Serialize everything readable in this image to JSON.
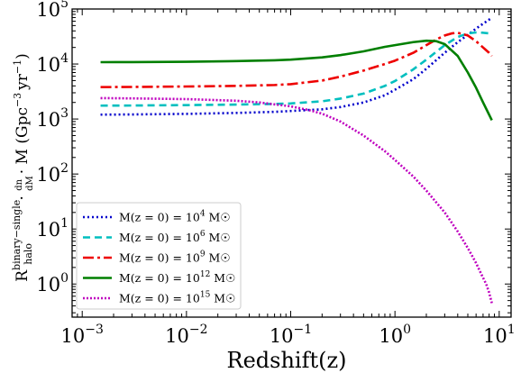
{
  "chart_data": {
    "type": "line",
    "title": "",
    "xlabel": "Redshift(z)",
    "ylabel": "R_halo^binary−single · dn/dM · M (Gpc^−3 yr^−1)",
    "ylabel_parts": {
      "base": "R",
      "sub": "halo",
      "sup": "binary−single",
      "dn": "dn",
      "dM": "dM",
      "rest": "· M (Gpc",
      "exp": "−3",
      "tail": "yr",
      "exp2": "−1",
      "close": ")"
    },
    "xscale": "log",
    "yscale": "log",
    "xlim": [
      0.0008,
      13
    ],
    "ylim": [
      0.25,
      100000
    ],
    "x_ticks": [
      {
        "value": 0.001,
        "base": "10",
        "exp": "−3"
      },
      {
        "value": 0.01,
        "base": "10",
        "exp": "−2"
      },
      {
        "value": 0.1,
        "base": "10",
        "exp": "−1"
      },
      {
        "value": 1,
        "base": "10",
        "exp": "0"
      },
      {
        "value": 10,
        "base": "10",
        "exp": "1"
      }
    ],
    "y_ticks": [
      {
        "value": 1,
        "base": "10",
        "exp": "0"
      },
      {
        "value": 10,
        "base": "10",
        "exp": "1"
      },
      {
        "value": 100,
        "base": "10",
        "exp": "2"
      },
      {
        "value": 1000,
        "base": "10",
        "exp": "3"
      },
      {
        "value": 10000,
        "base": "10",
        "exp": "4"
      },
      {
        "value": 100000,
        "base": "10",
        "exp": "5"
      }
    ],
    "grid": false,
    "legend_position": "lower-left",
    "series": [
      {
        "name": "M(z = 0) = 10^4 M☉",
        "legend": {
          "pre": "M(z = 0) = 10",
          "exp": "4",
          "post": " M☉"
        },
        "color": "#0000cc",
        "dash": "2,3",
        "x": [
          0.0015,
          0.003,
          0.01,
          0.03,
          0.07,
          0.1,
          0.2,
          0.3,
          0.5,
          0.8,
          1,
          1.5,
          2,
          3,
          4,
          5,
          6,
          7,
          8,
          8.5
        ],
        "y": [
          1200,
          1210,
          1240,
          1290,
          1350,
          1400,
          1500,
          1650,
          2000,
          2700,
          3400,
          5300,
          8200,
          16000,
          25000,
          34000,
          44000,
          54000,
          64000,
          69000
        ]
      },
      {
        "name": "M(z = 0) = 10^6 M☉",
        "legend": {
          "pre": "M(z = 0) = 10",
          "exp": "6",
          "post": " M☉"
        },
        "color": "#00bfbf",
        "dash": "8,5",
        "x": [
          0.0015,
          0.003,
          0.01,
          0.03,
          0.07,
          0.1,
          0.2,
          0.3,
          0.5,
          0.8,
          1,
          1.5,
          2,
          3,
          4,
          5,
          6,
          7,
          8,
          8.5
        ],
        "y": [
          1750,
          1760,
          1790,
          1830,
          1880,
          1920,
          2100,
          2350,
          2900,
          4000,
          4900,
          8000,
          12000,
          22000,
          31000,
          36000,
          37500,
          37000,
          36000,
          35500
        ]
      },
      {
        "name": "M(z = 0) = 10^9 M☉",
        "legend": {
          "pre": "M(z = 0) = 10",
          "exp": "9",
          "post": " M☉"
        },
        "color": "#ee0000",
        "dash": "12,4,3,4",
        "x": [
          0.0015,
          0.003,
          0.01,
          0.03,
          0.07,
          0.1,
          0.2,
          0.3,
          0.5,
          0.8,
          1,
          1.5,
          2,
          2.5,
          3,
          3.5,
          4,
          5,
          6,
          7,
          8,
          8.5
        ],
        "y": [
          3800,
          3830,
          3900,
          4000,
          4150,
          4300,
          5000,
          5900,
          7600,
          10000,
          11500,
          16000,
          22000,
          28000,
          33000,
          36000,
          37000,
          33000,
          26000,
          20000,
          16000,
          14000
        ]
      },
      {
        "name": "M(z = 0) = 10^12 M☉",
        "legend": {
          "pre": "M(z = 0) = 10",
          "exp": "12",
          "post": " M☉"
        },
        "color": "#007f00",
        "dash": "",
        "x": [
          0.0015,
          0.003,
          0.01,
          0.03,
          0.07,
          0.1,
          0.2,
          0.3,
          0.5,
          0.8,
          1,
          1.5,
          2,
          2.5,
          3,
          4,
          5,
          6,
          7,
          8,
          8.5
        ],
        "y": [
          10800,
          10850,
          11000,
          11300,
          11700,
          12000,
          13200,
          14500,
          17000,
          20500,
          22000,
          25000,
          26500,
          26000,
          23000,
          14000,
          7000,
          3700,
          2000,
          1200,
          950
        ]
      },
      {
        "name": "M(z = 0) = 10^15 M☉",
        "legend": {
          "pre": "M(z = 0) = 10",
          "exp": "15",
          "post": " M☉"
        },
        "color": "#bf00bf",
        "dash": "2,2",
        "x": [
          0.0015,
          0.003,
          0.01,
          0.03,
          0.05,
          0.1,
          0.15,
          0.2,
          0.3,
          0.5,
          0.8,
          1,
          1.5,
          2,
          3,
          4,
          5,
          6,
          7,
          7.5,
          8,
          8.5
        ],
        "y": [
          2400,
          2370,
          2300,
          2150,
          2000,
          1700,
          1450,
          1250,
          900,
          500,
          260,
          180,
          90,
          50,
          20,
          9,
          4.5,
          2.4,
          1.3,
          1.0,
          0.7,
          0.45
        ]
      }
    ]
  }
}
